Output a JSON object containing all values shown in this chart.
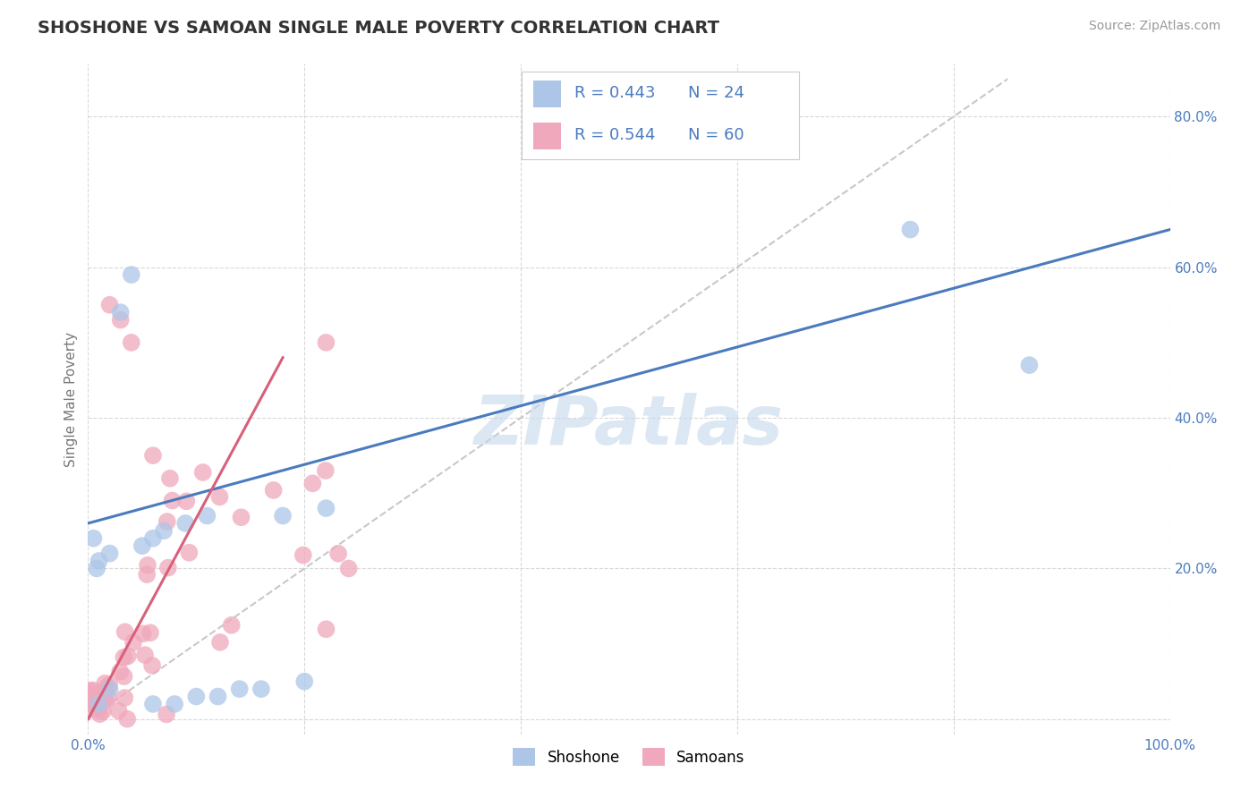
{
  "title": "SHOSHONE VS SAMOAN SINGLE MALE POVERTY CORRELATION CHART",
  "source": "Source: ZipAtlas.com",
  "ylabel": "Single Male Poverty",
  "xlim": [
    0.0,
    1.0
  ],
  "ylim": [
    -0.02,
    0.87
  ],
  "xticks": [
    0.0,
    0.2,
    0.4,
    0.6,
    0.8,
    1.0
  ],
  "xticklabels": [
    "0.0%",
    "",
    "",
    "",
    "",
    "100.0%"
  ],
  "yticks": [
    0.0,
    0.2,
    0.4,
    0.6,
    0.8
  ],
  "yticklabels": [
    "",
    "20.0%",
    "40.0%",
    "60.0%",
    "80.0%"
  ],
  "shoshone_color": "#adc6e8",
  "samoan_color": "#f0a8bc",
  "line_shoshone_color": "#4a7bbf",
  "line_samoan_color": "#d8607a",
  "diagonal_color": "#c8c8c8",
  "R_shoshone": 0.443,
  "N_shoshone": 24,
  "R_samoan": 0.544,
  "N_samoan": 60,
  "watermark": "ZIPatlas",
  "background_color": "#ffffff",
  "grid_color": "#d8d8d8",
  "title_color": "#333333",
  "axis_tick_color": "#4a7bbf",
  "ylabel_color": "#777777"
}
